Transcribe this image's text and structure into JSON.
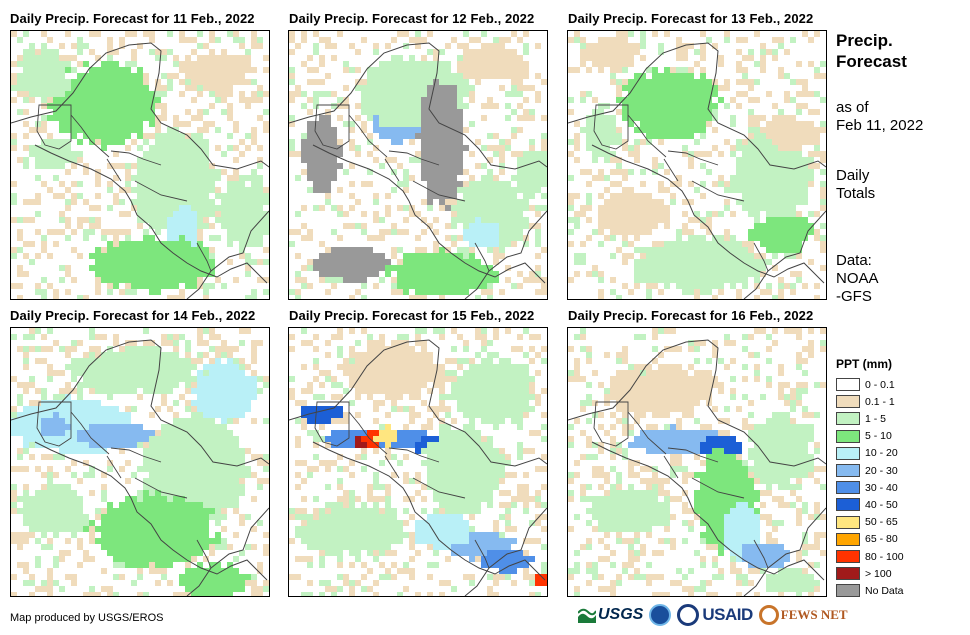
{
  "panels": [
    {
      "title": "Daily Precip. Forecast for 11 Feb., 2022",
      "pattern": 0
    },
    {
      "title": "Daily Precip. Forecast for 12 Feb., 2022",
      "pattern": 1
    },
    {
      "title": "Daily Precip. Forecast for 13 Feb., 2022",
      "pattern": 2
    },
    {
      "title": "Daily Precip. Forecast for 14 Feb., 2022",
      "pattern": 3
    },
    {
      "title": "Daily Precip. Forecast for 15 Feb., 2022",
      "pattern": 4
    },
    {
      "title": "Daily Precip. Forecast for 16 Feb., 2022",
      "pattern": 5
    }
  ],
  "sidebar": {
    "title": "Precip. Forecast",
    "as_of_label": "as of",
    "date": "Feb 11, 2022",
    "totals": "Daily Totals",
    "data_label": "Data:",
    "source": "NOAA-GFS"
  },
  "legend": {
    "title": "PPT (mm)",
    "items": [
      {
        "label": "0 - 0.1",
        "color": "#ffffff"
      },
      {
        "label": "0.1 - 1",
        "color": "#f0dcbc"
      },
      {
        "label": "1 - 5",
        "color": "#c2f2c2"
      },
      {
        "label": "5 - 10",
        "color": "#7de67d"
      },
      {
        "label": "10 - 20",
        "color": "#b9f0f7"
      },
      {
        "label": "20 - 30",
        "color": "#86baf0"
      },
      {
        "label": "30 - 40",
        "color": "#4f8fe8"
      },
      {
        "label": "40 - 50",
        "color": "#1c5fd6"
      },
      {
        "label": "50 - 65",
        "color": "#ffe680"
      },
      {
        "label": "65 - 80",
        "color": "#ffa500"
      },
      {
        "label": "80 - 100",
        "color": "#ff3300"
      },
      {
        "label": "> 100",
        "color": "#a11a1a"
      },
      {
        "label": "No Data",
        "color": "#999999"
      }
    ]
  },
  "credit": "Map produced by USGS/EROS",
  "logos": {
    "usgs": "USGS",
    "usaid": "USAID",
    "fews": "FEWS NET"
  }
}
